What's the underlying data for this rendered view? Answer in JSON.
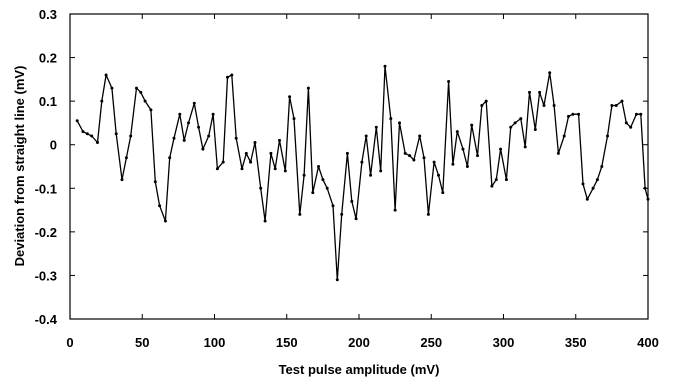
{
  "chart_data": {
    "type": "line",
    "title": "",
    "xlabel": "Test pulse amplitude (mV)",
    "ylabel": "Deviation from straight line (mV)",
    "xlim": [
      0,
      400
    ],
    "ylim": [
      -0.4,
      0.3
    ],
    "xticks": [
      0,
      50,
      100,
      150,
      200,
      250,
      300,
      350,
      400
    ],
    "yticks": [
      -0.4,
      -0.3,
      -0.2,
      -0.1,
      0,
      0.1,
      0.2,
      0.3
    ],
    "xtick_labels": [
      "0",
      "50",
      "100",
      "150",
      "200",
      "250",
      "300",
      "350",
      "400"
    ],
    "ytick_labels": [
      "-0.4",
      "-0.3",
      "-0.2",
      "-0.1",
      "0",
      "0.1",
      "0.2",
      "0.3"
    ],
    "grid": false,
    "legend": "none",
    "series": [
      {
        "color": "#000000",
        "marker": "dot",
        "x": [
          5,
          9,
          12,
          15,
          19,
          22,
          25,
          29,
          32,
          36,
          39,
          42,
          46,
          49,
          52,
          56,
          59,
          62,
          66,
          69,
          72,
          76,
          79,
          82,
          86,
          89,
          92,
          96,
          99,
          102,
          106,
          109,
          112,
          115,
          119,
          122,
          125,
          128,
          132,
          135,
          139,
          142,
          145,
          149,
          152,
          155,
          159,
          162,
          165,
          168,
          172,
          175,
          178,
          182,
          185,
          188,
          192,
          195,
          198,
          202,
          205,
          208,
          212,
          215,
          218,
          222,
          225,
          228,
          232,
          235,
          238,
          242,
          245,
          248,
          252,
          255,
          258,
          262,
          265,
          268,
          272,
          275,
          278,
          282,
          285,
          288,
          292,
          295,
          298,
          302,
          305,
          308,
          312,
          315,
          318,
          322,
          325,
          328,
          332,
          335,
          338,
          342,
          345,
          348,
          352,
          355,
          358,
          362,
          365,
          368,
          372,
          375,
          378,
          382,
          385,
          388,
          392,
          395,
          398,
          400
        ],
        "y": [
          0.055,
          0.03,
          0.025,
          0.02,
          0.005,
          0.1,
          0.16,
          0.13,
          0.025,
          -0.08,
          -0.03,
          0.02,
          0.13,
          0.12,
          0.1,
          0.08,
          -0.085,
          -0.14,
          -0.175,
          -0.03,
          0.015,
          0.07,
          0.01,
          0.05,
          0.095,
          0.04,
          -0.01,
          0.02,
          0.07,
          -0.055,
          -0.04,
          0.155,
          0.16,
          0.015,
          -0.055,
          -0.02,
          -0.04,
          0.005,
          -0.1,
          -0.175,
          -0.02,
          -0.055,
          0.01,
          -0.06,
          0.11,
          0.06,
          -0.16,
          -0.07,
          0.13,
          -0.11,
          -0.05,
          -0.08,
          -0.1,
          -0.14,
          -0.31,
          -0.16,
          -0.02,
          -0.13,
          -0.17,
          -0.04,
          0.02,
          -0.07,
          0.04,
          -0.06,
          0.18,
          0.06,
          -0.15,
          0.05,
          -0.02,
          -0.025,
          -0.035,
          0.02,
          -0.03,
          -0.16,
          -0.04,
          -0.07,
          -0.11,
          0.145,
          -0.045,
          0.03,
          -0.01,
          -0.05,
          0.045,
          -0.025,
          0.09,
          0.1,
          -0.095,
          -0.08,
          -0.01,
          -0.08,
          0.04,
          0.05,
          0.06,
          -0.005,
          0.12,
          0.035,
          0.12,
          0.09,
          0.165,
          0.09,
          -0.02,
          0.02,
          0.065,
          0.07,
          0.07,
          -0.09,
          -0.125,
          -0.1,
          -0.08,
          -0.05,
          0.02,
          0.09,
          0.09,
          0.1,
          0.05,
          0.04,
          0.07,
          0.07,
          -0.1,
          -0.125
        ]
      }
    ]
  }
}
